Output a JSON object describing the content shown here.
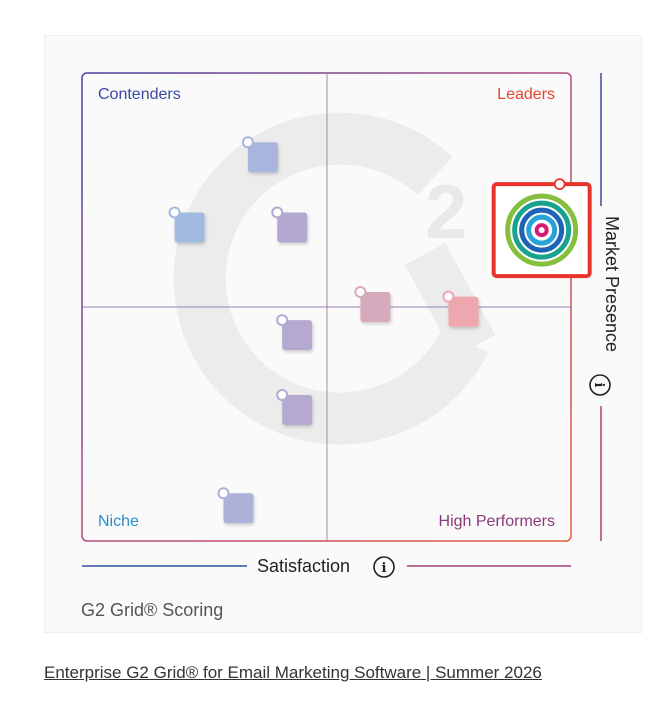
{
  "quadrants": {
    "top_left": "Contenders",
    "top_right": "Leaders",
    "bottom_left": "Niche",
    "bottom_right": "High Performers"
  },
  "axes": {
    "x_label": "Satisfaction",
    "y_label": "Market Presence",
    "info_glyph": "i"
  },
  "footer": {
    "scoring_label": "G2 Grid® Scoring"
  },
  "caption": {
    "text": "Enterprise G2 Grid® for Email Marketing Software | Summer 2026"
  },
  "colors": {
    "contenders": "#3d4aa4",
    "leaders": "#e8432e",
    "niche": "#2b8fc9",
    "high_performers": "#8a3a7a",
    "highlight": "#e8342a"
  },
  "chart_data": {
    "type": "scatter",
    "xlabel": "Satisfaction",
    "ylabel": "Market Presence",
    "xlim": [
      0,
      100
    ],
    "ylim": [
      0,
      100
    ],
    "grid": false,
    "points": [
      {
        "x": 37,
        "y": 82,
        "color": "#a9b5dc"
      },
      {
        "x": 22,
        "y": 67,
        "color": "#a1bbe0"
      },
      {
        "x": 43,
        "y": 67,
        "color": "#b3a8cf"
      },
      {
        "x": 60,
        "y": 50,
        "color": "#d7a9bd"
      },
      {
        "x": 78,
        "y": 49,
        "color": "#eea7ac"
      },
      {
        "x": 44,
        "y": 44,
        "color": "#b6a9d0"
      },
      {
        "x": 44,
        "y": 28,
        "color": "#b6a9d0"
      },
      {
        "x": 32,
        "y": 7,
        "color": "#adb2d8"
      },
      {
        "x": 94,
        "y": 66,
        "color": "#ffffff",
        "highlight": true
      }
    ]
  }
}
